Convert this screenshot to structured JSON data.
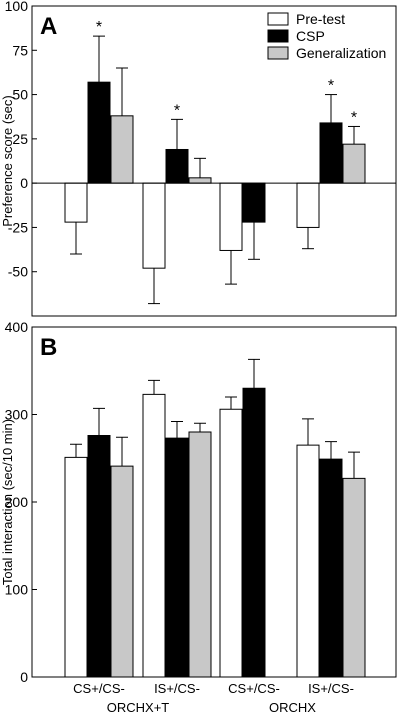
{
  "chart_data": [
    {
      "type": "bar",
      "panel_label": "A",
      "ylabel": "Preference score (sec)",
      "ylim": [
        -75,
        100
      ],
      "yticks": [
        -50,
        -25,
        0,
        25,
        50,
        75,
        100
      ],
      "ytick_labels": [
        "-50",
        "-25",
        "0",
        "25",
        "50",
        "75",
        "100"
      ],
      "zero_line": true,
      "legend": {
        "placement": "top-right",
        "entries": [
          "Pre-test",
          "CSP",
          "Generalization"
        ]
      },
      "categories": [
        "CS+/CS- ORCHX+T",
        "IS+/CS- ORCHX+T",
        "CS+/CS- ORCHX",
        "IS+/CS- ORCHX"
      ],
      "series": [
        {
          "name": "Pre-test",
          "color": "#ffffff",
          "values": [
            -22,
            -48,
            -38,
            -25
          ],
          "errors": [
            18,
            20,
            19,
            12
          ],
          "significance": [
            "",
            "",
            "",
            ""
          ]
        },
        {
          "name": "CSP",
          "color": "#000000",
          "values": [
            57,
            19,
            -22,
            34
          ],
          "errors": [
            26,
            17,
            21,
            16
          ],
          "significance": [
            "*",
            "*",
            "",
            "*"
          ]
        },
        {
          "name": "Generalization",
          "color": "#c8c8c8",
          "values": [
            38,
            3,
            null,
            22
          ],
          "errors": [
            27,
            11,
            null,
            10
          ],
          "significance": [
            "",
            "",
            "",
            "*"
          ]
        }
      ]
    },
    {
      "type": "bar",
      "panel_label": "B",
      "ylabel": "Total interaction (sec/10 min)",
      "ylim": [
        0,
        400
      ],
      "yticks": [
        0,
        100,
        200,
        300,
        400
      ],
      "ytick_labels": [
        "0",
        "100",
        "200",
        "300",
        "400"
      ],
      "categories": [
        "CS+/CS- ORCHX+T",
        "IS+/CS- ORCHX+T",
        "CS+/CS- ORCHX",
        "IS+/CS- ORCHX"
      ],
      "x_tick_labels": [
        "CS+/CS-",
        "IS+/CS-",
        "CS+/CS-",
        "IS+/CS-"
      ],
      "group_labels": [
        "ORCHX+T",
        "ORCHX"
      ],
      "series": [
        {
          "name": "Pre-test",
          "color": "#ffffff",
          "values": [
            251,
            323,
            306,
            265
          ],
          "errors": [
            15,
            16,
            14,
            30
          ]
        },
        {
          "name": "CSP",
          "color": "#000000",
          "values": [
            276,
            273,
            330,
            249
          ],
          "errors": [
            31,
            19,
            33,
            20
          ]
        },
        {
          "name": "Generalization",
          "color": "#c8c8c8",
          "values": [
            241,
            280,
            null,
            227
          ],
          "errors": [
            33,
            10,
            null,
            30
          ]
        }
      ]
    }
  ]
}
